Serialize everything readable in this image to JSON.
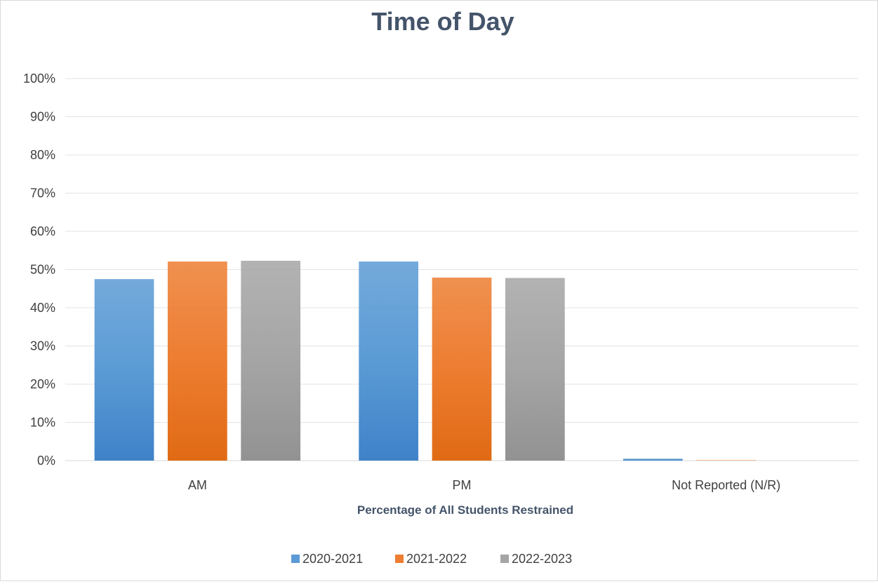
{
  "chart_data": {
    "type": "bar",
    "title": "Time of Day",
    "xlabel": "Percentage of All Students Restrained",
    "ylabel": "",
    "categories": [
      "AM",
      "PM",
      "Not Reported (N/R)"
    ],
    "series": [
      {
        "name": "2020-2021",
        "values": [
          47.5,
          52.1,
          0.5
        ],
        "color": "#5b9bd5",
        "color_dark": "#3f82c8"
      },
      {
        "name": "2021-2022",
        "values": [
          52.1,
          47.9,
          0.1
        ],
        "color": "#ed7d31",
        "color_dark": "#e06a14"
      },
      {
        "name": "2022-2023",
        "values": [
          52.3,
          47.8,
          0.0
        ],
        "color": "#a5a5a5",
        "color_dark": "#929292"
      }
    ],
    "ylim": [
      0,
      100
    ],
    "y_ticks": [
      0,
      10,
      20,
      30,
      40,
      50,
      60,
      70,
      80,
      90,
      100
    ],
    "y_tick_labels": [
      "0%",
      "10%",
      "20%",
      "30%",
      "40%",
      "50%",
      "60%",
      "70%",
      "80%",
      "90%",
      "100%"
    ],
    "grid": true,
    "legend_position": "bottom"
  }
}
